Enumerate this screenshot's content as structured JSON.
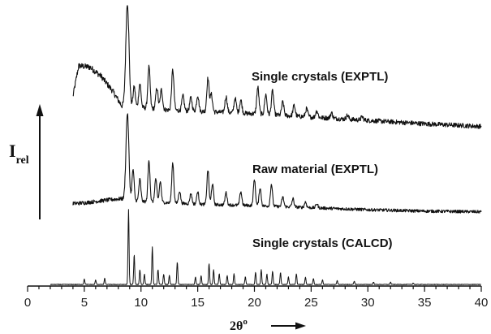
{
  "chart_data": {
    "type": "line",
    "title": "",
    "xlabel": "2θ°",
    "xlabel_parts": {
      "base": "2θ",
      "sup": "o"
    },
    "ylabel": "Irel",
    "ylabel_parts": {
      "base": "I",
      "sub": "rel"
    },
    "xlim": [
      0,
      40
    ],
    "x_ticks": [
      0,
      5,
      10,
      15,
      20,
      25,
      30,
      35,
      40
    ],
    "y_axis": "relative intensity, no tick values (traces vertically offset)",
    "grid": false,
    "legend": "none (series labelled inline)",
    "series": [
      {
        "name": "Single crystals (EXPTL)",
        "style": "noisy experimental pattern",
        "baseline_control": [
          [
            4.0,
            0.26
          ],
          [
            4.5,
            0.72
          ],
          [
            5.5,
            0.7
          ],
          [
            6.5,
            0.56
          ],
          [
            7.5,
            0.34
          ],
          [
            8.3,
            0.12
          ],
          [
            9.5,
            0.1
          ],
          [
            12,
            0.06
          ],
          [
            16,
            0.03
          ],
          [
            20,
            0.0
          ],
          [
            25,
            -0.05
          ],
          [
            30,
            -0.1
          ],
          [
            35,
            -0.15
          ],
          [
            40,
            -0.19
          ]
        ],
        "peaks": [
          [
            8.8,
            1.55
          ],
          [
            9.4,
            0.3
          ],
          [
            9.9,
            0.36
          ],
          [
            10.7,
            0.62
          ],
          [
            11.4,
            0.32
          ],
          [
            11.8,
            0.3
          ],
          [
            12.8,
            0.6
          ],
          [
            13.7,
            0.22
          ],
          [
            14.4,
            0.2
          ],
          [
            15.0,
            0.24
          ],
          [
            15.9,
            0.5
          ],
          [
            16.2,
            0.26
          ],
          [
            17.5,
            0.24
          ],
          [
            18.3,
            0.22
          ],
          [
            18.8,
            0.2
          ],
          [
            20.3,
            0.4
          ],
          [
            21.0,
            0.3
          ],
          [
            21.6,
            0.36
          ],
          [
            22.5,
            0.2
          ],
          [
            23.5,
            0.16
          ],
          [
            24.6,
            0.12
          ],
          [
            25.5,
            0.1
          ],
          [
            26.8,
            0.08
          ],
          [
            28.2,
            0.06
          ],
          [
            29.5,
            0.05
          ]
        ]
      },
      {
        "name": "Raw material (EXPTL)",
        "style": "noisy experimental pattern",
        "baseline_control": [
          [
            4.0,
            0.03
          ],
          [
            5.0,
            0.04
          ],
          [
            7.0,
            0.08
          ],
          [
            8.2,
            0.1
          ],
          [
            10,
            0.06
          ],
          [
            15,
            0.02
          ],
          [
            20,
            0.0
          ],
          [
            25,
            -0.03
          ],
          [
            30,
            -0.06
          ],
          [
            35,
            -0.08
          ],
          [
            40,
            -0.09
          ]
        ],
        "peaks": [
          [
            8.8,
            1.25
          ],
          [
            9.3,
            0.45
          ],
          [
            9.9,
            0.32
          ],
          [
            10.7,
            0.6
          ],
          [
            11.3,
            0.34
          ],
          [
            11.7,
            0.3
          ],
          [
            12.8,
            0.58
          ],
          [
            13.4,
            0.18
          ],
          [
            14.4,
            0.15
          ],
          [
            15.0,
            0.18
          ],
          [
            15.9,
            0.5
          ],
          [
            16.3,
            0.3
          ],
          [
            17.5,
            0.18
          ],
          [
            18.8,
            0.2
          ],
          [
            20.0,
            0.38
          ],
          [
            20.5,
            0.26
          ],
          [
            21.5,
            0.32
          ],
          [
            22.5,
            0.14
          ],
          [
            23.4,
            0.12
          ],
          [
            24.5,
            0.08
          ],
          [
            25.5,
            0.06
          ]
        ]
      },
      {
        "name": "Single crystals (CALCD)",
        "style": "calculated stick-like pattern",
        "baseline_control": [
          [
            2,
            0.0
          ],
          [
            40,
            0.0
          ]
        ],
        "peaks": [
          [
            5.0,
            0.07
          ],
          [
            6.0,
            0.06
          ],
          [
            6.8,
            0.08
          ],
          [
            8.9,
            1.0
          ],
          [
            9.4,
            0.4
          ],
          [
            9.9,
            0.2
          ],
          [
            10.3,
            0.14
          ],
          [
            11.0,
            0.5
          ],
          [
            11.5,
            0.2
          ],
          [
            12.0,
            0.14
          ],
          [
            12.5,
            0.12
          ],
          [
            13.2,
            0.3
          ],
          [
            14.8,
            0.1
          ],
          [
            15.3,
            0.12
          ],
          [
            16.0,
            0.28
          ],
          [
            16.4,
            0.2
          ],
          [
            16.9,
            0.14
          ],
          [
            17.6,
            0.12
          ],
          [
            18.2,
            0.14
          ],
          [
            19.2,
            0.1
          ],
          [
            20.1,
            0.16
          ],
          [
            20.6,
            0.2
          ],
          [
            21.1,
            0.14
          ],
          [
            21.6,
            0.18
          ],
          [
            22.3,
            0.16
          ],
          [
            23.0,
            0.1
          ],
          [
            23.7,
            0.14
          ],
          [
            24.5,
            0.1
          ],
          [
            25.2,
            0.08
          ],
          [
            26.0,
            0.06
          ],
          [
            27.3,
            0.05
          ],
          [
            28.8,
            0.04
          ],
          [
            30.5,
            0.03
          ],
          [
            32.0,
            0.03
          ],
          [
            34.0,
            0.02
          ]
        ]
      }
    ]
  }
}
